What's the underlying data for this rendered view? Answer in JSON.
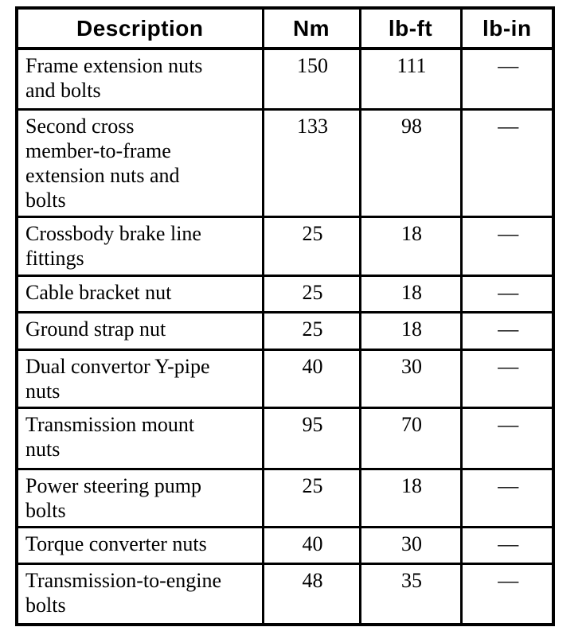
{
  "table": {
    "columns": [
      {
        "key": "description",
        "label": "Description"
      },
      {
        "key": "nm",
        "label": "Nm"
      },
      {
        "key": "lb_ft",
        "label": "lb-ft"
      },
      {
        "key": "lb_in",
        "label": "lb-in"
      }
    ],
    "rows": [
      {
        "description": "Frame extension nuts\nand bolts",
        "nm": "150",
        "lb_ft": "111",
        "lb_in": "—"
      },
      {
        "description": "Second cross\nmember-to-frame\nextension nuts and\nbolts",
        "nm": "133",
        "lb_ft": "98",
        "lb_in": "—"
      },
      {
        "description": "Crossbody brake line\nfittings",
        "nm": "25",
        "lb_ft": "18",
        "lb_in": "—"
      },
      {
        "description": "Cable bracket nut",
        "nm": "25",
        "lb_ft": "18",
        "lb_in": "—"
      },
      {
        "description": "Ground strap nut",
        "nm": "25",
        "lb_ft": "18",
        "lb_in": "—"
      },
      {
        "description": "Dual convertor Y-pipe\nnuts",
        "nm": "40",
        "lb_ft": "30",
        "lb_in": "—"
      },
      {
        "description": "Transmission mount\nnuts",
        "nm": "95",
        "lb_ft": "70",
        "lb_in": "—"
      },
      {
        "description": "Power steering pump\nbolts",
        "nm": "25",
        "lb_ft": "18",
        "lb_in": "—"
      },
      {
        "description": "Torque converter nuts",
        "nm": "40",
        "lb_ft": "30",
        "lb_in": "—"
      },
      {
        "description": "Transmission-to-engine\nbolts",
        "nm": "48",
        "lb_ft": "35",
        "lb_in": "—"
      }
    ],
    "colors": {
      "border": "#000000",
      "text": "#000000",
      "background": "#ffffff"
    }
  }
}
